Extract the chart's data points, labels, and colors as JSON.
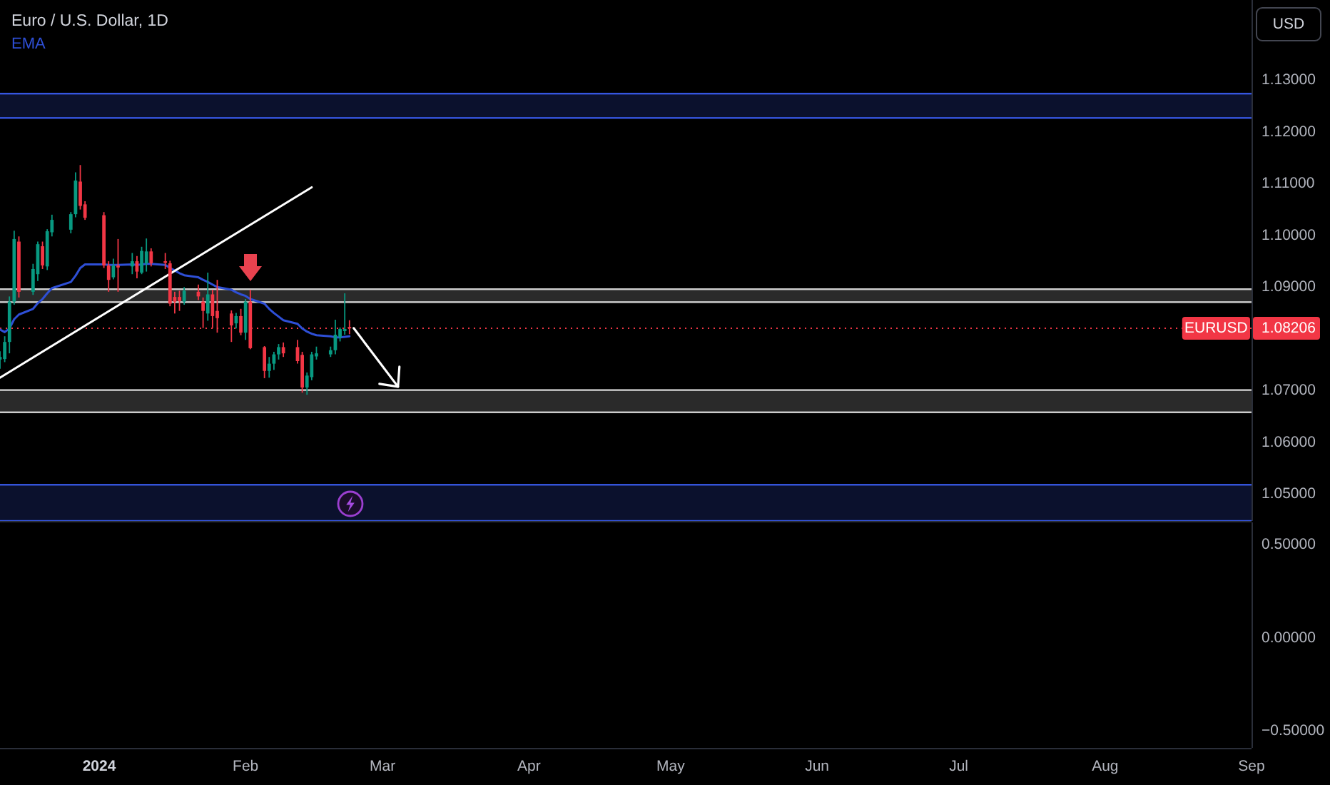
{
  "chart_data": [
    {
      "type": "candlestick",
      "title": "Euro / U.S. Dollar, 1D",
      "ylabel": "USD",
      "legend": "top left",
      "tick_labels": "y",
      "x": [
        "2023-12-11",
        "2023-12-12",
        "2023-12-13",
        "2023-12-14",
        "2023-12-15",
        "2023-12-18",
        "2023-12-19",
        "2023-12-20",
        "2023-12-21",
        "2023-12-22",
        "2023-12-26",
        "2023-12-27",
        "2023-12-28",
        "2023-12-29",
        "2024-01-02",
        "2024-01-03",
        "2024-01-04",
        "2024-01-05",
        "2024-01-08",
        "2024-01-09",
        "2024-01-10",
        "2024-01-11",
        "2024-01-12",
        "2024-01-15",
        "2024-01-16",
        "2024-01-17",
        "2024-01-18",
        "2024-01-19",
        "2024-01-22",
        "2024-01-23",
        "2024-01-24",
        "2024-01-25",
        "2024-01-26",
        "2024-01-29",
        "2024-01-30",
        "2024-01-31",
        "2024-02-01",
        "2024-02-02",
        "2024-02-05",
        "2024-02-06",
        "2024-02-07",
        "2024-02-08",
        "2024-02-09",
        "2024-02-12",
        "2024-02-13",
        "2024-02-14",
        "2024-02-15",
        "2024-02-16",
        "2024-02-19",
        "2024-02-20",
        "2024-02-21",
        "2024-02-22",
        "2024-02-23"
      ],
      "ohlc": [
        [
          1.076,
          1.0776,
          1.0742,
          1.0765
        ],
        [
          1.0761,
          1.0805,
          1.0755,
          1.0794
        ],
        [
          1.0794,
          1.0882,
          1.0772,
          1.0872
        ],
        [
          1.0872,
          1.1009,
          1.0866,
          1.0993
        ],
        [
          1.0988,
          1.0998,
          1.088,
          1.0891
        ],
        [
          1.0891,
          1.0945,
          1.0885,
          1.0935
        ],
        [
          1.0925,
          1.0988,
          1.0912,
          1.0983
        ],
        [
          1.0979,
          1.0988,
          1.0935,
          1.0942
        ],
        [
          1.094,
          1.1012,
          1.0933,
          1.1008
        ],
        [
          1.1006,
          1.104,
          1.0998,
          1.103
        ],
        [
          1.1011,
          1.1045,
          1.1004,
          1.1041
        ],
        [
          1.1041,
          1.1122,
          1.1035,
          1.1106
        ],
        [
          1.1104,
          1.1136,
          1.105,
          1.1057
        ],
        [
          1.106,
          1.1066,
          1.103,
          1.1034
        ],
        [
          1.1039,
          1.1045,
          1.0937,
          1.0942
        ],
        [
          1.0942,
          1.095,
          1.0891,
          1.0914
        ],
        [
          1.0919,
          1.0955,
          1.0915,
          1.0942
        ],
        [
          1.0942,
          1.0993,
          1.0891,
          1.0938
        ],
        [
          1.094,
          1.0966,
          1.0925,
          1.095
        ],
        [
          1.095,
          1.096,
          1.0917,
          1.093
        ],
        [
          1.0928,
          1.0978,
          1.0925,
          1.097
        ],
        [
          1.0946,
          1.0994,
          1.093,
          1.0969
        ],
        [
          1.0969,
          1.0975,
          1.094,
          1.0946
        ],
        [
          1.095,
          1.0966,
          1.0935,
          1.0947
        ],
        [
          1.0946,
          1.0951,
          1.0863,
          1.0868
        ],
        [
          1.0881,
          1.0891,
          1.0849,
          1.0872
        ],
        [
          1.0881,
          1.0893,
          1.0854,
          1.0873
        ],
        [
          1.0872,
          1.09,
          1.0866,
          1.0893
        ],
        [
          1.0891,
          1.0905,
          1.0875,
          1.0882
        ],
        [
          1.0872,
          1.088,
          1.0821,
          1.0854
        ],
        [
          1.0849,
          1.0928,
          1.0835,
          1.0886
        ],
        [
          1.0886,
          1.0895,
          1.0821,
          1.0844
        ],
        [
          1.0854,
          1.0914,
          1.0812,
          1.084
        ],
        [
          1.0849,
          1.0855,
          1.0794,
          1.0826
        ],
        [
          1.083,
          1.085,
          1.082,
          1.0844
        ],
        [
          1.0844,
          1.0858,
          1.0807,
          1.0812
        ],
        [
          1.0812,
          1.0877,
          1.0798,
          1.0872
        ],
        [
          1.0872,
          1.0895,
          1.078,
          1.0782
        ],
        [
          1.0784,
          1.0786,
          1.0724,
          1.0738
        ],
        [
          1.0738,
          1.0765,
          1.0725,
          1.0752
        ],
        [
          1.0752,
          1.0775,
          1.074,
          1.077
        ],
        [
          1.077,
          1.079,
          1.076,
          1.0784
        ],
        [
          1.0784,
          1.0793,
          1.0765,
          1.0772
        ],
        [
          1.0784,
          1.0798,
          1.0752,
          1.0757
        ],
        [
          1.0769,
          1.0775,
          1.0696,
          1.0706
        ],
        [
          1.0706,
          1.0735,
          1.0692,
          1.0729
        ],
        [
          1.0726,
          1.0775,
          1.072,
          1.077
        ],
        [
          1.0766,
          1.0785,
          1.076,
          1.0772
        ],
        [
          1.077,
          1.0785,
          1.0765,
          1.0778
        ],
        [
          1.0778,
          1.0837,
          1.077,
          1.0808
        ],
        [
          1.0803,
          1.0822,
          1.0795,
          1.0819
        ],
        [
          1.0815,
          1.0888,
          1.0808,
          1.0819
        ],
        [
          1.0823,
          1.0836,
          1.0809,
          1.08206
        ]
      ],
      "colors": [
        "#089981",
        "#089981",
        "#089981",
        "#089981",
        "#f23645",
        "#089981",
        "#089981",
        "#f23645",
        "#089981",
        "#089981",
        "#089981",
        "#089981",
        "#f23645",
        "#f23645",
        "#f23645",
        "#f23645",
        "#089981",
        "#f23645",
        "#089981",
        "#f23645",
        "#089981",
        "#089981",
        "#f23645",
        "#f23645",
        "#f23645",
        "#f23645",
        "#f23645",
        "#089981",
        "#f23645",
        "#f23645",
        "#089981",
        "#f23645",
        "#f23645",
        "#f23645",
        "#089981",
        "#f23645",
        "#089981",
        "#f23645",
        "#f23645",
        "#089981",
        "#089981",
        "#089981",
        "#f23645",
        "#f23645",
        "#f23645",
        "#089981",
        "#089981",
        "#089981",
        "#089981",
        "#089981",
        "#089981",
        "#089981",
        "#f23645"
      ],
      "series": [
        {
          "name": "EMA",
          "type": "line",
          "color": "#2e4fd6",
          "values": [
            1.0818,
            1.0813,
            1.082,
            1.0838,
            1.0847,
            1.0858,
            1.0869,
            1.0877,
            1.0888,
            1.0898,
            1.091,
            1.0922,
            1.0937,
            1.0944,
            1.0944,
            1.0943,
            1.0943,
            1.0943,
            1.0944,
            1.0943,
            1.0944,
            1.0945,
            1.0945,
            1.0943,
            1.0937,
            1.0932,
            1.0927,
            1.0923,
            1.0919,
            1.0914,
            1.091,
            1.0905,
            1.09,
            1.0895,
            1.089,
            1.0886,
            1.0883,
            1.0877,
            1.0868,
            1.0858,
            1.085,
            1.0843,
            1.0836,
            1.0829,
            1.082,
            1.0814,
            1.081,
            1.0807,
            1.0805,
            1.0803,
            1.0803,
            1.0804,
            1.0805
          ]
        },
        {
          "type": "line",
          "color": "#ffffff",
          "x": [
            "2023-12-11",
            "2024-02-15"
          ],
          "values": [
            1.0725,
            1.1093
          ]
        }
      ],
      "xlim": [
        "2023-12-11",
        "2024-09-01"
      ],
      "ylim": [
        1.0448,
        1.1455
      ],
      "yticks": [
        {
          "value": 1.13,
          "label": "1.13000"
        },
        {
          "value": 1.12,
          "label": "1.12000"
        },
        {
          "value": 1.11,
          "label": "1.11000"
        },
        {
          "value": 1.1,
          "label": "1.10000"
        },
        {
          "value": 1.09,
          "label": "1.09000"
        },
        {
          "value": 1.08206,
          "label": "1.08206"
        },
        {
          "value": 1.07,
          "label": "1.07000"
        },
        {
          "value": 1.06,
          "label": "1.06000"
        },
        {
          "value": 1.05,
          "label": "1.05000"
        }
      ],
      "bands": [
        {
          "axis": "y",
          "from": 1.1227,
          "to": 1.1274,
          "color": "#3656e0"
        },
        {
          "axis": "y",
          "from": 1.0871,
          "to": 1.0896,
          "color": "#d0d0d0"
        },
        {
          "axis": "y",
          "from": 1.0658,
          "to": 1.0701,
          "color": "#d0d0d0"
        },
        {
          "axis": "y",
          "from": 1.0448,
          "to": 1.0518,
          "color": "#3656e0"
        }
      ],
      "ref_lines": [
        {
          "axis": "y",
          "value": 1.08206,
          "label": "EURUSD",
          "color": "#f23645",
          "line_style": "dotted"
        }
      ]
    },
    {
      "type": "line",
      "xlim": [
        "2023-12-11",
        "2024-09-01"
      ],
      "xticks": [
        {
          "value": "2024-01-01",
          "label": "2024"
        },
        {
          "value": "2024-02-01",
          "label": "Feb"
        },
        {
          "value": "2024-03-01",
          "label": "Mar"
        },
        {
          "value": "2024-04-01",
          "label": "Apr"
        },
        {
          "value": "2024-05-01",
          "label": "May"
        },
        {
          "value": "2024-06-01",
          "label": "Jun"
        },
        {
          "value": "2024-07-01",
          "label": "Jul"
        },
        {
          "value": "2024-08-01",
          "label": "Aug"
        },
        {
          "value": "2024-09-01",
          "label": "Sep"
        }
      ],
      "ylim": [
        -0.59,
        0.62
      ],
      "yticks": [
        {
          "value": 0.5,
          "label": "0.50000"
        },
        {
          "value": 0,
          "label": "0.00000"
        },
        {
          "value": -0.5,
          "label": "−0.50000"
        }
      ]
    }
  ]
}
